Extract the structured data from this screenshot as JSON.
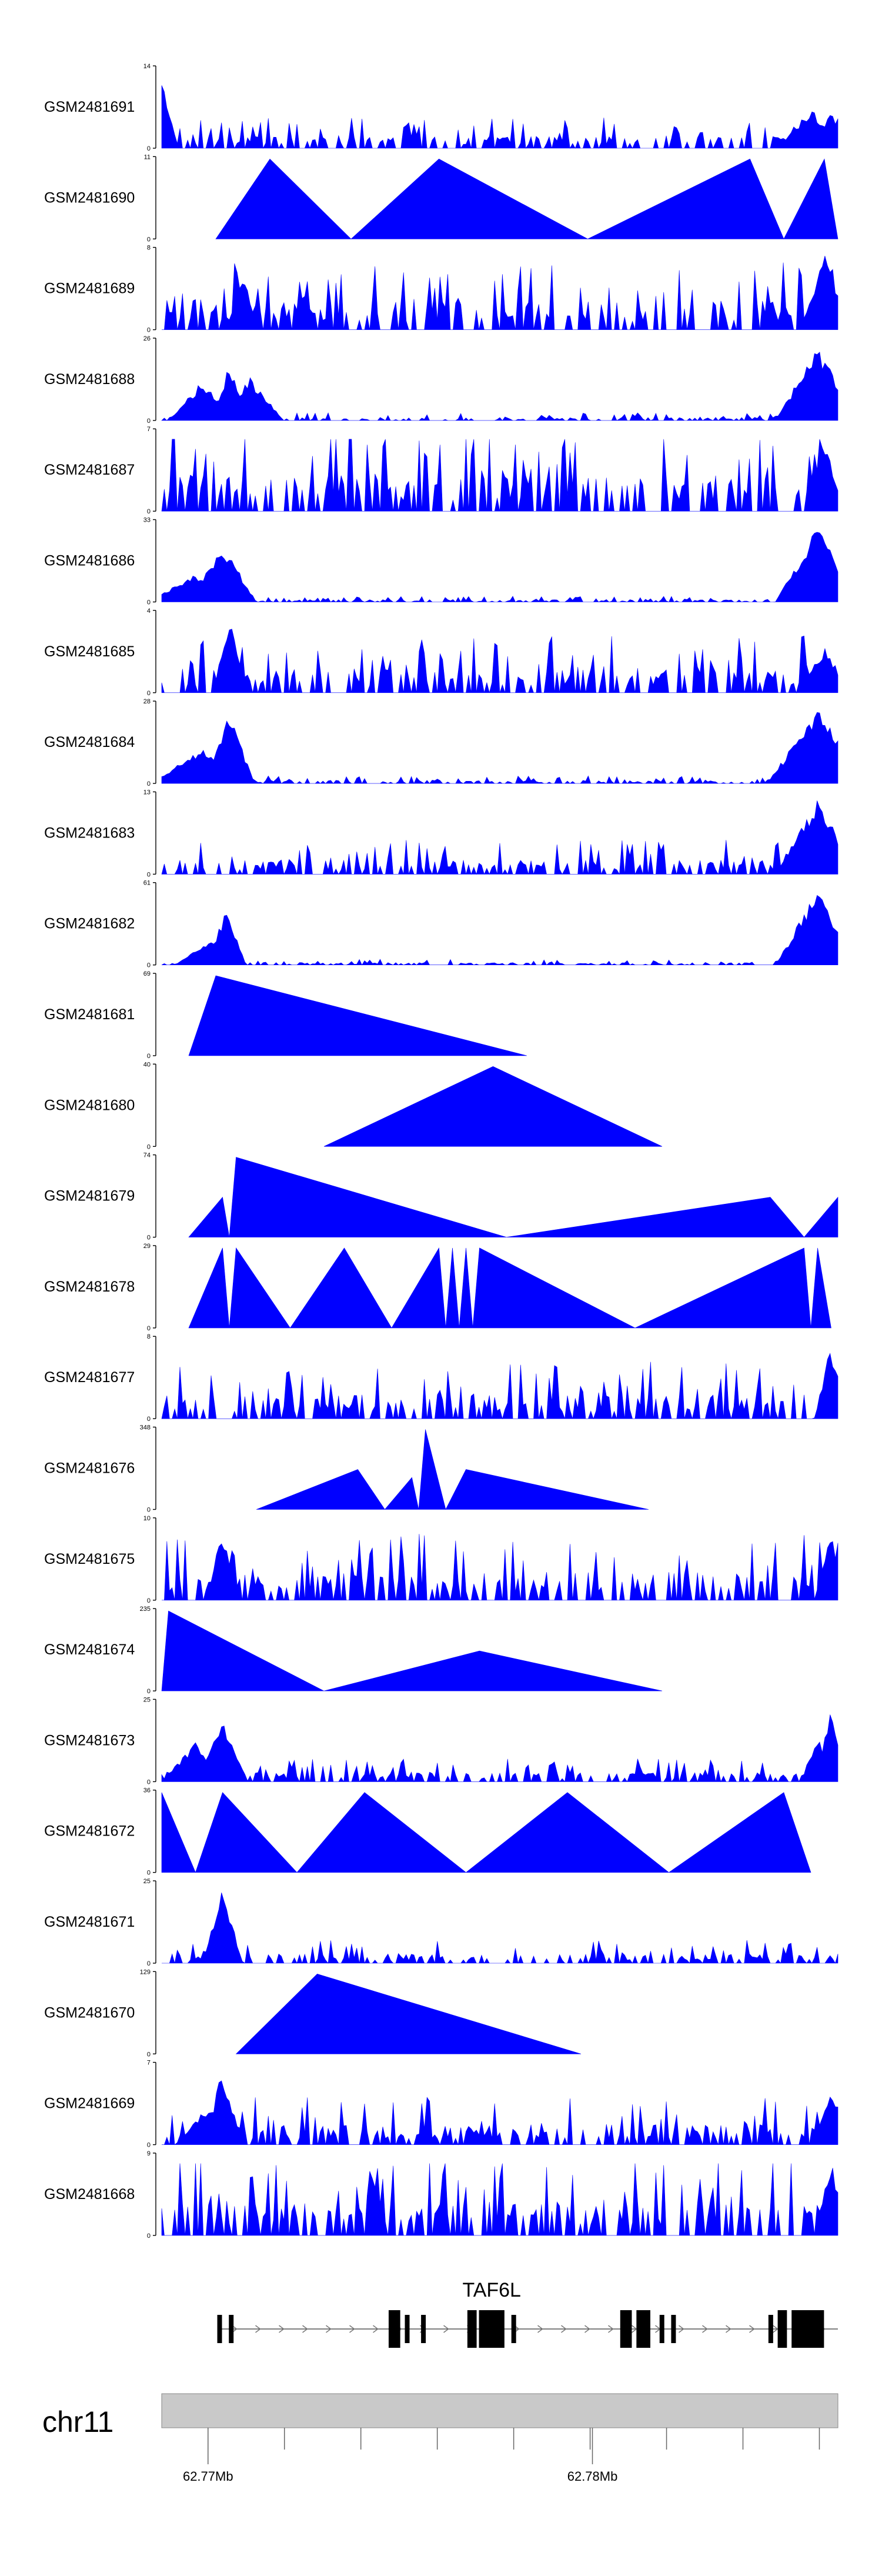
{
  "chart_data": {
    "type": "area",
    "title": "",
    "chromosome": "chr11",
    "xlim": [
      62768700,
      62783300
    ],
    "x_ticks": [
      62769700,
      62771350,
      62773000,
      62774650,
      62776300,
      62777950,
      62779600,
      62781250,
      62782900
    ],
    "x_tick_labels": [
      {
        "pos": 62769700,
        "label": "62.77Mb"
      },
      {
        "pos": 62778000,
        "label": "62.78Mb"
      }
    ],
    "tracks": [
      {
        "name": "GSM2481691",
        "ymax": "14",
        "shape": "noise",
        "seed": 91,
        "base": 0.16,
        "spikes": [
          [
            0.0,
            0.95,
            0.01
          ],
          [
            0.96,
            0.5,
            0.02
          ],
          [
            0.99,
            0.5,
            0.01
          ]
        ]
      },
      {
        "name": "GSM2481690",
        "ymax": "11",
        "shape": "tri",
        "points": [
          [
            0.08,
            0
          ],
          [
            0.16,
            1
          ],
          [
            0.28,
            0
          ],
          [
            0.41,
            1
          ],
          [
            0.63,
            0
          ],
          [
            0.87,
            1
          ],
          [
            0.92,
            0
          ],
          [
            0.98,
            1
          ],
          [
            1.0,
            0
          ]
        ]
      },
      {
        "name": "GSM2481689",
        "ymax": "8",
        "shape": "noise",
        "seed": 89,
        "base": 0.35,
        "spikes": [
          [
            0.12,
            0.7,
            0.01
          ],
          [
            0.98,
            0.95,
            0.015
          ]
        ]
      },
      {
        "name": "GSM2481688",
        "ymax": "26",
        "shape": "noise",
        "seed": 88,
        "base": 0.04,
        "spikes": [
          [
            0.06,
            0.5,
            0.02
          ],
          [
            0.1,
            0.75,
            0.01
          ],
          [
            0.13,
            0.55,
            0.02
          ],
          [
            0.97,
            0.95,
            0.025
          ]
        ]
      },
      {
        "name": "GSM2481687",
        "ymax": "7",
        "shape": "noise",
        "seed": 87,
        "base": 0.45,
        "spikes": [
          [
            0.98,
            0.95,
            0.012
          ]
        ]
      },
      {
        "name": "GSM2481686",
        "ymax": "33",
        "shape": "noise",
        "seed": 86,
        "base": 0.03,
        "spikes": [
          [
            0.05,
            0.35,
            0.03
          ],
          [
            0.09,
            0.75,
            0.02
          ],
          [
            0.97,
            0.95,
            0.025
          ]
        ]
      },
      {
        "name": "GSM2481685",
        "ymax": "4",
        "shape": "noise",
        "seed": 85,
        "base": 0.3,
        "spikes": [
          [
            0.1,
            0.95,
            0.01
          ],
          [
            0.98,
            0.6,
            0.015
          ]
        ]
      },
      {
        "name": "GSM2481684",
        "ymax": "28",
        "shape": "noise",
        "seed": 84,
        "base": 0.04,
        "spikes": [
          [
            0.06,
            0.45,
            0.03
          ],
          [
            0.1,
            0.9,
            0.015
          ],
          [
            0.97,
            0.95,
            0.03
          ]
        ]
      },
      {
        "name": "GSM2481683",
        "ymax": "13",
        "shape": "noise",
        "seed": 83,
        "base": 0.18,
        "spikes": [
          [
            0.97,
            0.95,
            0.025
          ]
        ]
      },
      {
        "name": "GSM2481682",
        "ymax": "61",
        "shape": "noise",
        "seed": 82,
        "base": 0.03,
        "spikes": [
          [
            0.07,
            0.3,
            0.02
          ],
          [
            0.095,
            0.7,
            0.012
          ],
          [
            0.97,
            0.95,
            0.025
          ]
        ]
      },
      {
        "name": "GSM2481681",
        "ymax": "69",
        "shape": "tri",
        "points": [
          [
            0.04,
            0
          ],
          [
            0.08,
            1
          ],
          [
            0.54,
            0
          ]
        ]
      },
      {
        "name": "GSM2481680",
        "ymax": "40",
        "shape": "tri",
        "points": [
          [
            0.24,
            0
          ],
          [
            0.49,
            1
          ],
          [
            0.74,
            0
          ]
        ]
      },
      {
        "name": "GSM2481679",
        "ymax": "74",
        "shape": "tri",
        "points": [
          [
            0.04,
            0
          ],
          [
            0.09,
            0.5
          ],
          [
            0.1,
            0
          ],
          [
            0.11,
            1
          ],
          [
            0.51,
            0
          ],
          [
            0.9,
            0.5
          ],
          [
            0.95,
            0
          ],
          [
            1.0,
            0.5
          ],
          [
            1.0,
            0
          ]
        ]
      },
      {
        "name": "GSM2481678",
        "ymax": "29",
        "shape": "tri",
        "points": [
          [
            0.04,
            0
          ],
          [
            0.09,
            1
          ],
          [
            0.1,
            0
          ],
          [
            0.11,
            1
          ],
          [
            0.19,
            0
          ],
          [
            0.27,
            1
          ],
          [
            0.34,
            0
          ],
          [
            0.41,
            1
          ],
          [
            0.42,
            0
          ],
          [
            0.43,
            1
          ],
          [
            0.44,
            0
          ],
          [
            0.45,
            1
          ],
          [
            0.46,
            0
          ],
          [
            0.47,
            1
          ],
          [
            0.7,
            0
          ],
          [
            0.95,
            1
          ],
          [
            0.96,
            0
          ],
          [
            0.97,
            1
          ],
          [
            0.99,
            0
          ]
        ]
      },
      {
        "name": "GSM2481677",
        "ymax": "8",
        "shape": "noise",
        "seed": 77,
        "base": 0.3,
        "spikes": [
          [
            0.99,
            0.95,
            0.01
          ]
        ]
      },
      {
        "name": "GSM2481676",
        "ymax": "348",
        "shape": "tri",
        "points": [
          [
            0.14,
            0
          ],
          [
            0.29,
            0.5
          ],
          [
            0.33,
            0
          ],
          [
            0.37,
            0.4
          ],
          [
            0.38,
            0
          ],
          [
            0.39,
            1
          ],
          [
            0.42,
            0
          ],
          [
            0.45,
            0.5
          ],
          [
            0.72,
            0
          ]
        ]
      },
      {
        "name": "GSM2481675",
        "ymax": "10",
        "shape": "noise",
        "seed": 75,
        "base": 0.35,
        "spikes": [
          [
            0.09,
            0.9,
            0.01
          ],
          [
            0.99,
            0.9,
            0.01
          ]
        ]
      },
      {
        "name": "GSM2481674",
        "ymax": "235",
        "shape": "tri",
        "points": [
          [
            0.0,
            0
          ],
          [
            0.01,
            1
          ],
          [
            0.24,
            0
          ],
          [
            0.47,
            0.5
          ],
          [
            0.74,
            0
          ]
        ]
      },
      {
        "name": "GSM2481673",
        "ymax": "25",
        "shape": "noise",
        "seed": 73,
        "base": 0.12,
        "spikes": [
          [
            0.05,
            0.5,
            0.02
          ],
          [
            0.09,
            0.8,
            0.015
          ],
          [
            0.97,
            0.6,
            0.01
          ],
          [
            0.99,
            0.95,
            0.01
          ]
        ]
      },
      {
        "name": "GSM2481672",
        "ymax": "36",
        "shape": "tri",
        "points": [
          [
            0.0,
            0
          ],
          [
            0.0,
            1
          ],
          [
            0.05,
            0
          ],
          [
            0.09,
            1
          ],
          [
            0.2,
            0
          ],
          [
            0.3,
            1
          ],
          [
            0.45,
            0
          ],
          [
            0.6,
            1
          ],
          [
            0.75,
            0
          ],
          [
            0.92,
            1
          ],
          [
            0.96,
            0
          ]
        ]
      },
      {
        "name": "GSM2481671",
        "ymax": "25",
        "shape": "noise",
        "seed": 71,
        "base": 0.12,
        "spikes": [
          [
            0.09,
            0.95,
            0.012
          ]
        ]
      },
      {
        "name": "GSM2481670",
        "ymax": "129",
        "shape": "tri",
        "points": [
          [
            0.11,
            0
          ],
          [
            0.23,
            1
          ],
          [
            0.62,
            0
          ]
        ]
      },
      {
        "name": "GSM2481669",
        "ymax": "7",
        "shape": "noise",
        "seed": 69,
        "base": 0.25,
        "spikes": [
          [
            0.07,
            0.5,
            0.02
          ],
          [
            0.09,
            0.95,
            0.012
          ],
          [
            0.99,
            0.8,
            0.01
          ]
        ]
      },
      {
        "name": "GSM2481668",
        "ymax": "9",
        "shape": "noise",
        "seed": 68,
        "base": 0.45,
        "spikes": [
          [
            0.99,
            0.95,
            0.01
          ]
        ]
      }
    ],
    "gene_annotation": {
      "name": "TAF6L",
      "strand": "+",
      "start": 62769900,
      "end": 62783300,
      "exons": [
        [
          62769900,
          62770000
        ],
        [
          62770150,
          62770220
        ],
        [
          62773600,
          62773850
        ],
        [
          62773950,
          62774050
        ],
        [
          62774300,
          62774400
        ],
        [
          62775300,
          62775500
        ],
        [
          62775550,
          62776100
        ],
        [
          62776250,
          62776350
        ],
        [
          62778600,
          62778850
        ],
        [
          62778950,
          62779250
        ],
        [
          62779450,
          62779550
        ],
        [
          62779700,
          62779800
        ],
        [
          62781800,
          62781900
        ],
        [
          62782000,
          62782200
        ],
        [
          62782300,
          62783000
        ]
      ]
    },
    "colors": {
      "fill": "#0000ff",
      "axis_band": "#c9c9c9",
      "gene": "#000000"
    }
  }
}
